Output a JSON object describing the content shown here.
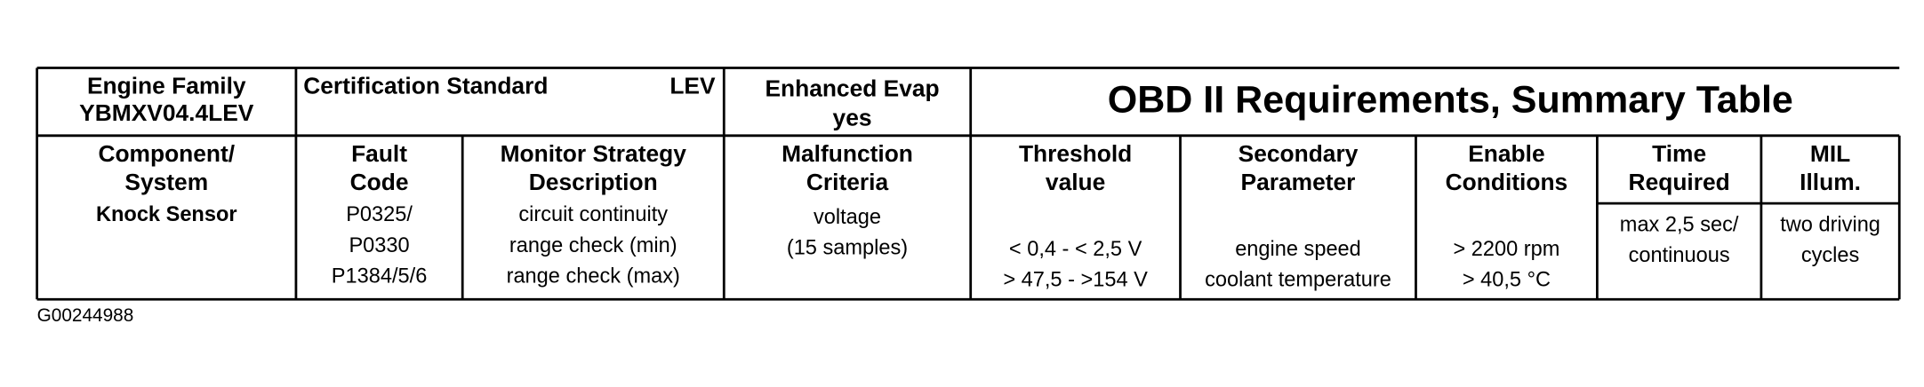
{
  "header": {
    "engine_family": [
      "Engine Family",
      "YBMXV04.4LEV"
    ],
    "certification_standard": "Certification Standard",
    "certification_value": "LEV",
    "enhanced_evap": [
      "Enhanced Evap",
      "yes"
    ],
    "title": "OBD II Requirements, Summary Table"
  },
  "table": {
    "columns": [
      [
        "Component/",
        "System"
      ],
      [
        "Fault",
        "Code"
      ],
      [
        "Monitor Strategy",
        "Description"
      ],
      [
        "Malfunction",
        "Criteria"
      ],
      [
        "Threshold",
        "value"
      ],
      [
        "Secondary",
        "Parameter"
      ],
      [
        "Enable",
        "Conditions"
      ],
      [
        "Time",
        "Required"
      ],
      [
        "MIL",
        "Illum."
      ]
    ],
    "rows": [
      [
        [
          "Knock Sensor"
        ],
        [
          "P0325/",
          "P0330",
          "P1384/5/6"
        ],
        [
          "circuit continuity",
          "range check (min)",
          "range check (max)"
        ],
        [
          "voltage",
          "(15 samples)"
        ],
        [
          "< 0,4 - < 2,5  V",
          "> 47,5 - >154 V"
        ],
        [
          "engine speed",
          "coolant temperature"
        ],
        [
          "> 2200 rpm",
          "> 40,5 °C"
        ],
        [
          "max 2,5 sec/",
          "continuous"
        ],
        [
          "two driving",
          "cycles"
        ]
      ]
    ]
  },
  "footer": "G00244988"
}
